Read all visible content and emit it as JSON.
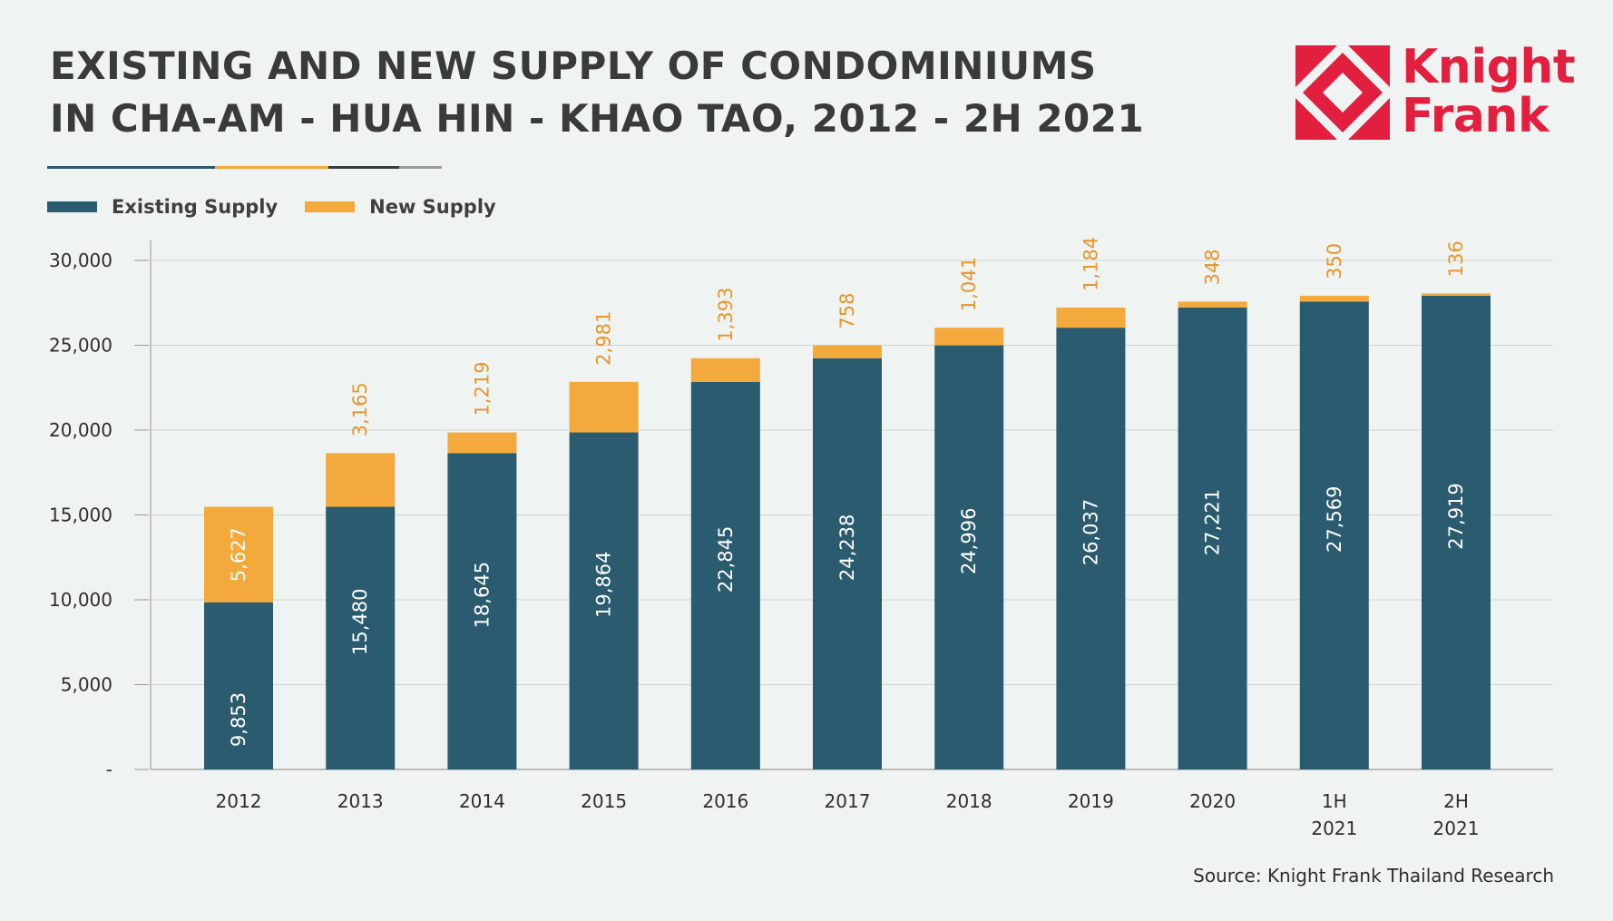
{
  "title_lines": [
    "EXISTING AND NEW SUPPLY OF CONDOMINIUMS",
    "IN CHA-AM - HUA HIN - KHAO TAO, 2012 - 2H 2021"
  ],
  "logo": {
    "line1": "Knight",
    "line2": "Frank",
    "icon": "knight-frank-diamond-icon",
    "color": "#e21f3f"
  },
  "divider_colors": [
    "#2b5a6e",
    "#f4a93c",
    "#3a3a3a",
    "#9a9a9a"
  ],
  "legend": [
    {
      "label": "Existing Supply",
      "color": "#2b5b6f"
    },
    {
      "label": "New Supply",
      "color": "#f4a93c"
    }
  ],
  "source": "Source: Knight Frank Thailand Research",
  "chart_data": {
    "type": "bar",
    "stacked": true,
    "title": "EXISTING AND NEW SUPPLY OF CONDOMINIUMS IN CHA-AM - HUA HIN - KHAO TAO, 2012 - 2H 2021",
    "categories": [
      [
        "2012"
      ],
      [
        "2013"
      ],
      [
        "2014"
      ],
      [
        "2015"
      ],
      [
        "2016"
      ],
      [
        "2017"
      ],
      [
        "2018"
      ],
      [
        "2019"
      ],
      [
        "2020"
      ],
      [
        "1H",
        "2021"
      ],
      [
        "2H",
        "2021"
      ]
    ],
    "series": [
      {
        "name": "Existing Supply",
        "color": "#2b5b6f",
        "values": [
          9853,
          15480,
          18645,
          19864,
          22845,
          24238,
          24996,
          26037,
          27221,
          27569,
          27919
        ],
        "labels": [
          "9,853",
          "15,480",
          "18,645",
          "19,864",
          "22,845",
          "24,238",
          "24,996",
          "26,037",
          "27,221",
          "27,569",
          "27,919"
        ]
      },
      {
        "name": "New Supply",
        "color": "#f4a93c",
        "values": [
          5627,
          3165,
          1219,
          2981,
          1393,
          758,
          1041,
          1184,
          348,
          350,
          136
        ],
        "labels": [
          "5,627",
          "3,165",
          "1,219",
          "2,981",
          "1,393",
          "758",
          "1,041",
          "1,184",
          "348",
          "350",
          "136"
        ]
      }
    ],
    "ylim": [
      0,
      30000
    ],
    "yticks": [
      0,
      5000,
      10000,
      15000,
      20000,
      25000,
      30000
    ],
    "ytick_labels": [
      "-",
      "5,000",
      "10,000",
      "15,000",
      "20,000",
      "25,000",
      "30,000"
    ],
    "grid": true,
    "xlabel": "",
    "ylabel": "",
    "legend_position": "top-left"
  }
}
